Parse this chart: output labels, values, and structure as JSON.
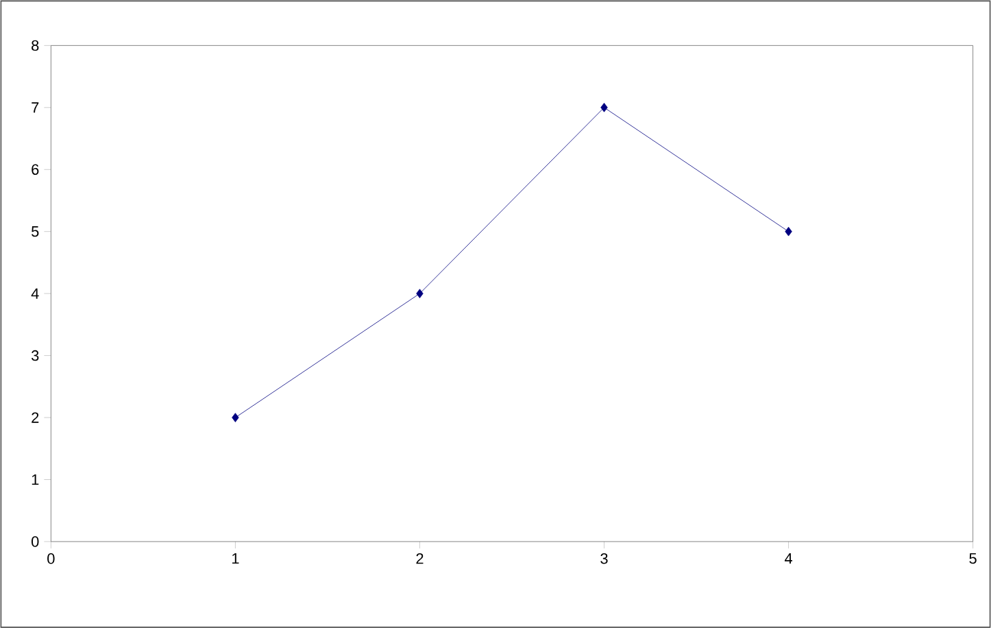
{
  "chart_data": {
    "type": "line",
    "x": [
      1,
      2,
      3,
      4
    ],
    "series": [
      {
        "color": "#000080",
        "values": [
          2,
          4,
          7,
          5
        ]
      }
    ],
    "xlim": [
      0,
      5
    ],
    "xticks": [
      0,
      1,
      2,
      3,
      4,
      5
    ],
    "ylim": [
      0,
      8
    ],
    "yticks": [
      0,
      1,
      2,
      3,
      4,
      5,
      6,
      7,
      8
    ],
    "grid": false,
    "marker": "diamond",
    "line_style": "solid"
  }
}
